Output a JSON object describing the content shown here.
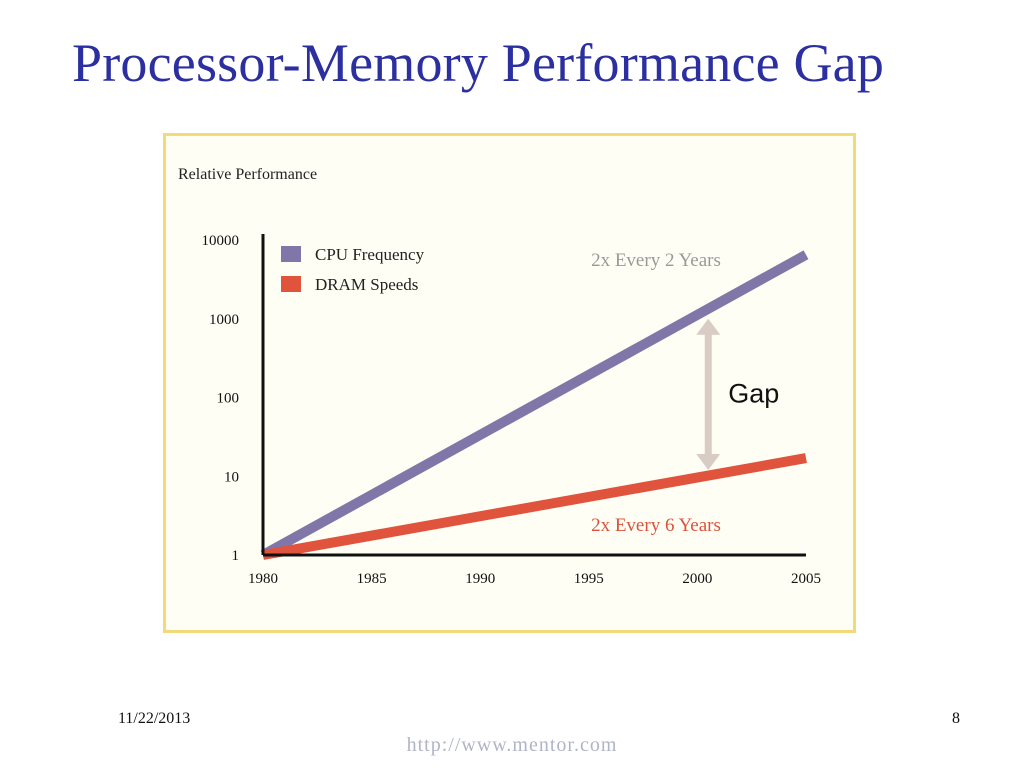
{
  "slide": {
    "title": "Processor-Memory Performance Gap",
    "date": "11/22/2013",
    "page_number": "8",
    "url": "http://www.mentor.com"
  },
  "chart_data": {
    "type": "line",
    "ylabel": "Relative Performance",
    "xlabel": "",
    "y_scale": "log",
    "ylim": [
      1,
      10000
    ],
    "xlim": [
      1980,
      2005
    ],
    "x_ticks": [
      "1980",
      "1985",
      "1990",
      "1995",
      "2000",
      "2005"
    ],
    "y_ticks": [
      "1",
      "10",
      "100",
      "1000",
      "10000"
    ],
    "legend_position": "top-left",
    "series": [
      {
        "name": "CPU Frequency",
        "color": "#8077a8",
        "x": [
          1980,
          2005
        ],
        "y": [
          1,
          6500
        ],
        "annotation": "2x Every 2 Years"
      },
      {
        "name": "DRAM Speeds",
        "color": "#e0533d",
        "x": [
          1980,
          2005
        ],
        "y": [
          1,
          17
        ],
        "annotation": "2x Every 6 Years"
      }
    ],
    "gap_annotation": {
      "label": "Gap",
      "x": 2000.5,
      "y_from": 1000,
      "y_to": 12
    },
    "annotation_colors": {
      "cpu_note": "#999999",
      "dram_note": "#d9533d",
      "gap_arrow": "#d8ccc4"
    }
  }
}
